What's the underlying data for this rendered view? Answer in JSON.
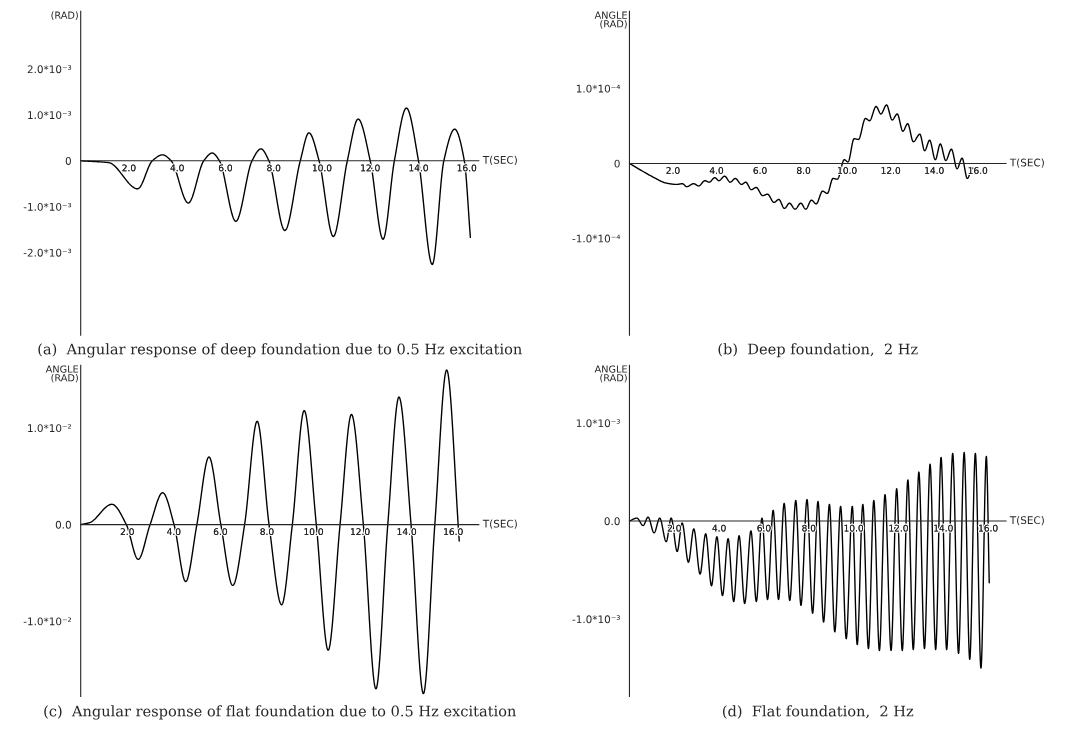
{
  "chart_data": [
    {
      "type": "line",
      "title": "(a)  Angular response of deep foundation due to 0.5 Hz excitation",
      "xlabel": "T(SEC)",
      "ylabel": "(RAD)",
      "x": [
        0,
        1.16,
        2.36,
        2.97,
        3.39,
        3.75,
        4.46,
        5.1,
        5.45,
        5.75,
        6.43,
        7.1,
        7.47,
        7.8,
        8.46,
        9.1,
        9.46,
        9.88,
        10.47,
        11.05,
        11.5,
        12.0,
        12.53,
        13.0,
        13.5,
        14.0,
        14.57,
        15.05,
        15.5,
        15.9,
        16.15
      ],
      "series": [
        {
          "color": "#000000",
          "values": [
            0,
            -4e-05,
            -0.00061,
            0,
            0.00013,
            0,
            -0.00092,
            0,
            0.00017,
            0,
            -0.00132,
            0,
            0.00026,
            0,
            -0.00152,
            0,
            0.00061,
            0,
            -0.00165,
            0,
            0.00091,
            0,
            -0.00171,
            0,
            0.00115,
            0,
            -0.00226,
            0,
            0.00069,
            0,
            -0.00167
          ]
        }
      ],
      "xlim": [
        0,
        16.5
      ],
      "ylim": [
        -0.0038,
        0.00326
      ],
      "xticks": [
        {
          "value": 2,
          "label": "2.0"
        },
        {
          "value": 4,
          "label": "4.0"
        },
        {
          "value": 6,
          "label": "6.0"
        },
        {
          "value": 8,
          "label": "8.0"
        },
        {
          "value": 10,
          "label": "10.0"
        },
        {
          "value": 12,
          "label": "12.0"
        },
        {
          "value": 14,
          "label": "14.0"
        },
        {
          "value": 16,
          "label": "16.0"
        }
      ],
      "yticks": [
        {
          "value": 0.002,
          "label": "2.0*10⁻³"
        },
        {
          "value": 0.001,
          "label": "1.0*10⁻³"
        },
        {
          "value": 0,
          "label": "0"
        },
        {
          "value": -0.001,
          "label": "-1.0*10⁻³"
        },
        {
          "value": -0.002,
          "label": "-2.0*10⁻³"
        }
      ]
    },
    {
      "type": "line",
      "title": "(b)  Deep foundation,  2 Hz",
      "xlabel": "T(SEC)",
      "ylabel": "ANGLE\n(RAD)",
      "x": [
        0,
        1.14,
        1.66,
        2.17,
        2.43,
        2.63,
        2.95,
        3.18,
        3.47,
        3.66,
        3.92,
        4.11,
        4.37,
        4.63,
        4.86,
        5.15,
        5.34,
        5.6,
        5.82,
        6.12,
        6.34,
        6.64,
        6.86,
        7.12,
        7.35,
        7.61,
        7.87,
        8.1,
        8.36,
        8.58,
        8.87,
        9.09,
        9.35,
        9.55,
        9.87,
        10.04,
        10.32,
        10.52,
        10.84,
        11.03,
        11.33,
        11.55,
        11.81,
        12.07,
        12.3,
        12.56,
        12.78,
        13.04,
        13.34,
        13.56,
        13.79,
        14.05,
        14.28,
        14.53,
        14.79,
        15.05,
        15.28,
        15.52,
        15.76,
        15.89
      ],
      "series": [
        {
          "color": "#000000",
          "values": [
            0,
            -1.9e-05,
            -2.6e-05,
            -2.8e-05,
            -2.7e-05,
            -3.1e-05,
            -2.7e-05,
            -3e-05,
            -2.3e-05,
            -2.5e-05,
            -1.9e-05,
            -2.3e-05,
            -1.7e-05,
            -2.5e-05,
            -2e-05,
            -2.8e-05,
            -2.5e-05,
            -3.5e-05,
            -3.2e-05,
            -4.3e-05,
            -4.1e-05,
            -5.2e-05,
            -4.8e-05,
            -6e-05,
            -5.3e-05,
            -6.1e-05,
            -5.3e-05,
            -6.1e-05,
            -4.9e-05,
            -5.4e-05,
            -3.7e-05,
            -4e-05,
            -2e-05,
            -2.1e-05,
            5e-06,
            2e-06,
            3.3e-05,
            3.2e-05,
            6e-05,
            5.7e-05,
            7.6e-05,
            6.6e-05,
            7.8e-05,
            5.8e-05,
            6.6e-05,
            4.3e-05,
            5.3e-05,
            2.9e-05,
            3.9e-05,
            1.7e-05,
            3.1e-05,
            5e-06,
            2.6e-05,
            4e-06,
            1.9e-05,
            -7e-06,
            7e-06,
            -2e-05,
            -6e-06,
            -1.4e-05
          ]
        }
      ],
      "xlim": [
        0,
        17.3
      ],
      "ylim": [
        -0.000229,
        0.000203
      ],
      "xticks": [
        {
          "value": 2,
          "label": "2.0"
        },
        {
          "value": 4,
          "label": "4.0"
        },
        {
          "value": 6,
          "label": "6.0"
        },
        {
          "value": 8,
          "label": "8.0"
        },
        {
          "value": 10,
          "label": "10.0"
        },
        {
          "value": 12,
          "label": "12.0"
        },
        {
          "value": 14,
          "label": "14.0"
        },
        {
          "value": 16,
          "label": "16.0"
        }
      ],
      "yticks": [
        {
          "value": 0.0001,
          "label": "1.0*10⁻⁴"
        },
        {
          "value": 0,
          "label": "0"
        },
        {
          "value": -0.0001,
          "label": "-1.0*10⁻⁴"
        }
      ]
    },
    {
      "type": "line",
      "title": "(c)  Angular response of flat foundation due to 0.5 Hz excitation",
      "xlabel": "T(SEC)",
      "ylabel": "ANGLE\n(RAD)",
      "x": [
        0,
        0.38,
        1.34,
        1.96,
        2.47,
        2.98,
        3.52,
        4.01,
        4.51,
        4.99,
        5.51,
        6.02,
        6.53,
        7.04,
        7.58,
        8.09,
        8.63,
        9.09,
        9.6,
        10.12,
        10.63,
        11.14,
        11.63,
        12.14,
        12.68,
        13.19,
        13.67,
        14.19,
        14.72,
        15.21,
        15.72,
        16.26
      ],
      "series": [
        {
          "color": "#000000",
          "values": [
            0,
            0.0002,
            0.0021,
            0,
            -0.0036,
            0,
            0.0033,
            0,
            -0.0059,
            0,
            0.007,
            0,
            -0.0063,
            0,
            0.0107,
            0,
            -0.0083,
            0,
            0.0118,
            0,
            -0.013,
            0,
            0.0114,
            0,
            -0.017,
            0,
            0.0132,
            0,
            -0.0175,
            0,
            0.016,
            -0.0017
          ]
        }
      ],
      "xlim": [
        0,
        17.1
      ],
      "ylim": [
        -0.0178,
        0.0165
      ],
      "xticks": [
        {
          "value": 2,
          "label": "2.0"
        },
        {
          "value": 4,
          "label": "4.0"
        },
        {
          "value": 6,
          "label": "6.0"
        },
        {
          "value": 8,
          "label": "8.0"
        },
        {
          "value": 10,
          "label": "10.0"
        },
        {
          "value": 12,
          "label": "12.0"
        },
        {
          "value": 14,
          "label": "14.0"
        },
        {
          "value": 16,
          "label": "16.0"
        }
      ],
      "yticks": [
        {
          "value": 0.01,
          "label": "1.0*10⁻²"
        },
        {
          "value": 0,
          "label": "0.0"
        },
        {
          "value": -0.01,
          "label": "-1.0*10⁻²"
        }
      ]
    },
    {
      "type": "line",
      "title": "(d)  Flat foundation,  2 Hz",
      "xlabel": "T(SEC)",
      "ylabel": "ANGLE\n(RAD)",
      "x": [
        0,
        0.33,
        0.61,
        0.83,
        1.1,
        1.35,
        1.64,
        1.86,
        2.13,
        2.35,
        2.63,
        2.87,
        3.15,
        3.4,
        3.66,
        3.9,
        4.15,
        4.4,
        4.65,
        4.89,
        5.14,
        5.42,
        5.66,
        5.91,
        6.16,
        6.41,
        6.65,
        6.9,
        7.15,
        7.42,
        7.65,
        7.92,
        8.17,
        8.41,
        8.66,
        8.92,
        9.16,
        9.42,
        9.67,
        9.94,
        10.16,
        10.41,
        10.66,
        10.9,
        11.15,
        11.4,
        11.67,
        11.92,
        12.17,
        12.42,
        12.66,
        12.91,
        13.16,
        13.41,
        13.66,
        13.9,
        14.15,
        14.42,
        14.68,
        14.93,
        15.18,
        15.43,
        15.68,
        15.92,
        16.05
      ],
      "series": [
        {
          "color": "#000000",
          "values": [
            0,
            3e-05,
            -4.5e-05,
            4e-05,
            -0.00012,
            3e-05,
            -0.00021,
            3e-05,
            -0.00031,
            -2e-05,
            -0.00042,
            -8e-05,
            -0.00054,
            -0.00013,
            -0.00066,
            -0.00016,
            -0.00076,
            -0.00018,
            -0.00082,
            -0.00015,
            -0.00084,
            -0.0001,
            -0.00082,
            3e-05,
            -0.0008,
            0.00011,
            -0.0008,
            0.00018,
            -0.00081,
            0.00021,
            -0.00086,
            0.00022,
            -0.00094,
            0.0002,
            -0.00103,
            0.00017,
            -0.00113,
            0.00015,
            -0.0012,
            0.00015,
            -0.00126,
            0.00017,
            -0.0013,
            0.00021,
            -0.00132,
            0.00027,
            -0.00132,
            0.00033,
            -0.00132,
            0.00042,
            -0.00131,
            0.0005,
            -0.0013,
            0.00058,
            -0.00131,
            0.00065,
            -0.00131,
            0.00069,
            -0.00135,
            0.0007,
            -0.00141,
            0.00069,
            -0.0015,
            0.00066,
            -0.00063
          ]
        }
      ],
      "xlim": [
        0,
        16.8
      ],
      "ylim": [
        -0.00179,
        0.00159
      ],
      "xticks": [
        {
          "value": 2,
          "label": "2.0"
        },
        {
          "value": 4,
          "label": "4.0"
        },
        {
          "value": 6,
          "label": "6.0"
        },
        {
          "value": 8,
          "label": "8.0"
        },
        {
          "value": 10,
          "label": "10.0"
        },
        {
          "value": 12,
          "label": "12.0"
        },
        {
          "value": 14,
          "label": "14.0"
        },
        {
          "value": 16,
          "label": "16.0"
        }
      ],
      "yticks": [
        {
          "value": 0.001,
          "label": "1.0*10⁻³"
        },
        {
          "value": 0,
          "label": "0.0"
        },
        {
          "value": -0.001,
          "label": "-1.0*10⁻³"
        }
      ]
    }
  ]
}
